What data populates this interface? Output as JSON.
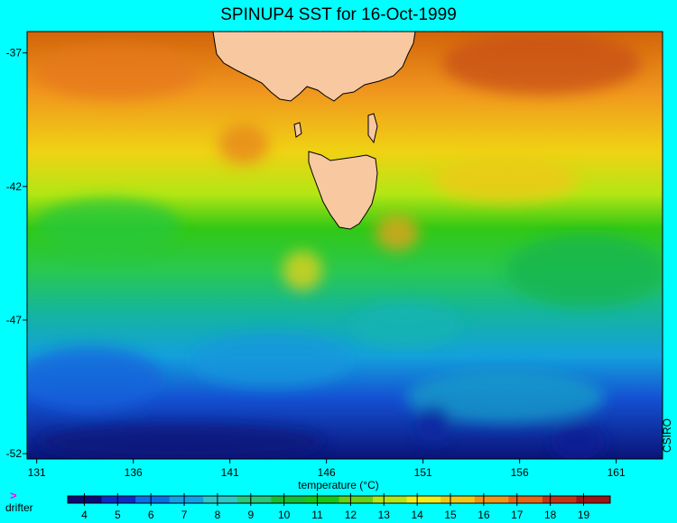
{
  "title": "SPINUP4 SST for 16-Oct-1999",
  "credit": "CSIRO",
  "legend": {
    "drifter_marker": ">",
    "drifter_label": "drifter"
  },
  "axes": {
    "x_ticks": [
      131,
      136,
      141,
      146,
      151,
      156,
      161
    ],
    "y_ticks": [
      -37,
      -42,
      -47,
      -52
    ],
    "x_range": [
      130.5,
      163.4
    ],
    "y_range": [
      -52.2,
      -36.2
    ]
  },
  "colorbar": {
    "label": "temperature (°C)",
    "ticks": [
      4,
      5,
      6,
      7,
      8,
      9,
      10,
      11,
      12,
      13,
      14,
      15,
      16,
      17,
      18,
      19
    ],
    "range": [
      3.5,
      19.8
    ],
    "colors": [
      "#0a0a78",
      "#0a2cc8",
      "#0a6ee6",
      "#12a0e6",
      "#2cc8c8",
      "#28c878",
      "#14be32",
      "#14c814",
      "#64d214",
      "#b4e614",
      "#f0f014",
      "#f0c814",
      "#f09614",
      "#e66414",
      "#c83214",
      "#a01414"
    ]
  },
  "colors": {
    "background": "#00ffff",
    "land": "#f8c8a0",
    "warm": "#e88214",
    "cold": "#0a1e96"
  }
}
